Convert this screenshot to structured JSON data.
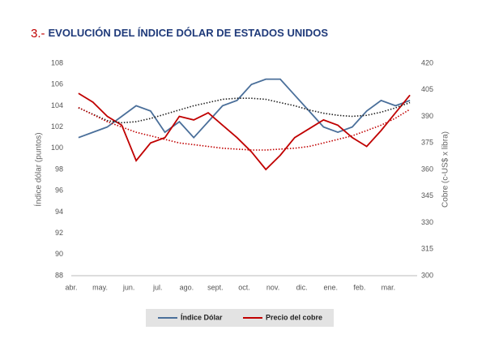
{
  "chart_data": {
    "type": "line",
    "title_number": "3.-",
    "title": "EVOLUCIÓN DEL ÍNDICE DÓLAR DE ESTADOS UNIDOS",
    "ylabel": "Índice dólar (puntos)",
    "y2label": "Cobre (c-US$ x libra)",
    "categories": [
      "abr.",
      null,
      "may.",
      null,
      "jun.",
      null,
      "jul.",
      null,
      "ago.",
      null,
      "sept.",
      null,
      "oct.",
      null,
      "nov.",
      null,
      "dic.",
      null,
      "ene.",
      null,
      "feb.",
      null,
      "mar.",
      null
    ],
    "ylim": [
      88,
      108
    ],
    "yticks": [
      88,
      90,
      92,
      94,
      96,
      98,
      100,
      102,
      104,
      106,
      108
    ],
    "y2lim": [
      300,
      420
    ],
    "y2ticks": [
      300,
      315,
      330,
      345,
      360,
      375,
      390,
      405,
      420
    ],
    "series": [
      {
        "name": "Índice Dólar",
        "color": "#4a6f9a",
        "axis": "y",
        "values": [
          101,
          101.5,
          102,
          103,
          104,
          103.5,
          101.5,
          102.5,
          101,
          102.5,
          104,
          104.5,
          106,
          106.5,
          106.5,
          105,
          103.5,
          102,
          101.5,
          102,
          103.5,
          104.5,
          104,
          104.5
        ]
      },
      {
        "name": "Precio del cobre",
        "color": "#c00000",
        "axis": "y2",
        "values": [
          403,
          398,
          390,
          385,
          365,
          375,
          378,
          390,
          388,
          392,
          385,
          378,
          370,
          360,
          368,
          378,
          383,
          388,
          385,
          378,
          373,
          382,
          392,
          402
        ]
      },
      {
        "color": "#222222",
        "axis": "y",
        "style": "dotted",
        "values": [
          103.8,
          103.2,
          102.6,
          102.4,
          102.5,
          102.8,
          103.2,
          103.6,
          104,
          104.3,
          104.6,
          104.7,
          104.7,
          104.6,
          104.3,
          104,
          103.6,
          103.3,
          103.1,
          103,
          103.1,
          103.4,
          103.8,
          104.3
        ]
      },
      {
        "color": "#c00000",
        "axis": "y2",
        "style": "dotted",
        "values": [
          395,
          391,
          387,
          384,
          381,
          379,
          377,
          375,
          374,
          373,
          372,
          371.5,
          371,
          371,
          371.5,
          372,
          373,
          375,
          377,
          379,
          382,
          385,
          389,
          394
        ]
      }
    ]
  }
}
